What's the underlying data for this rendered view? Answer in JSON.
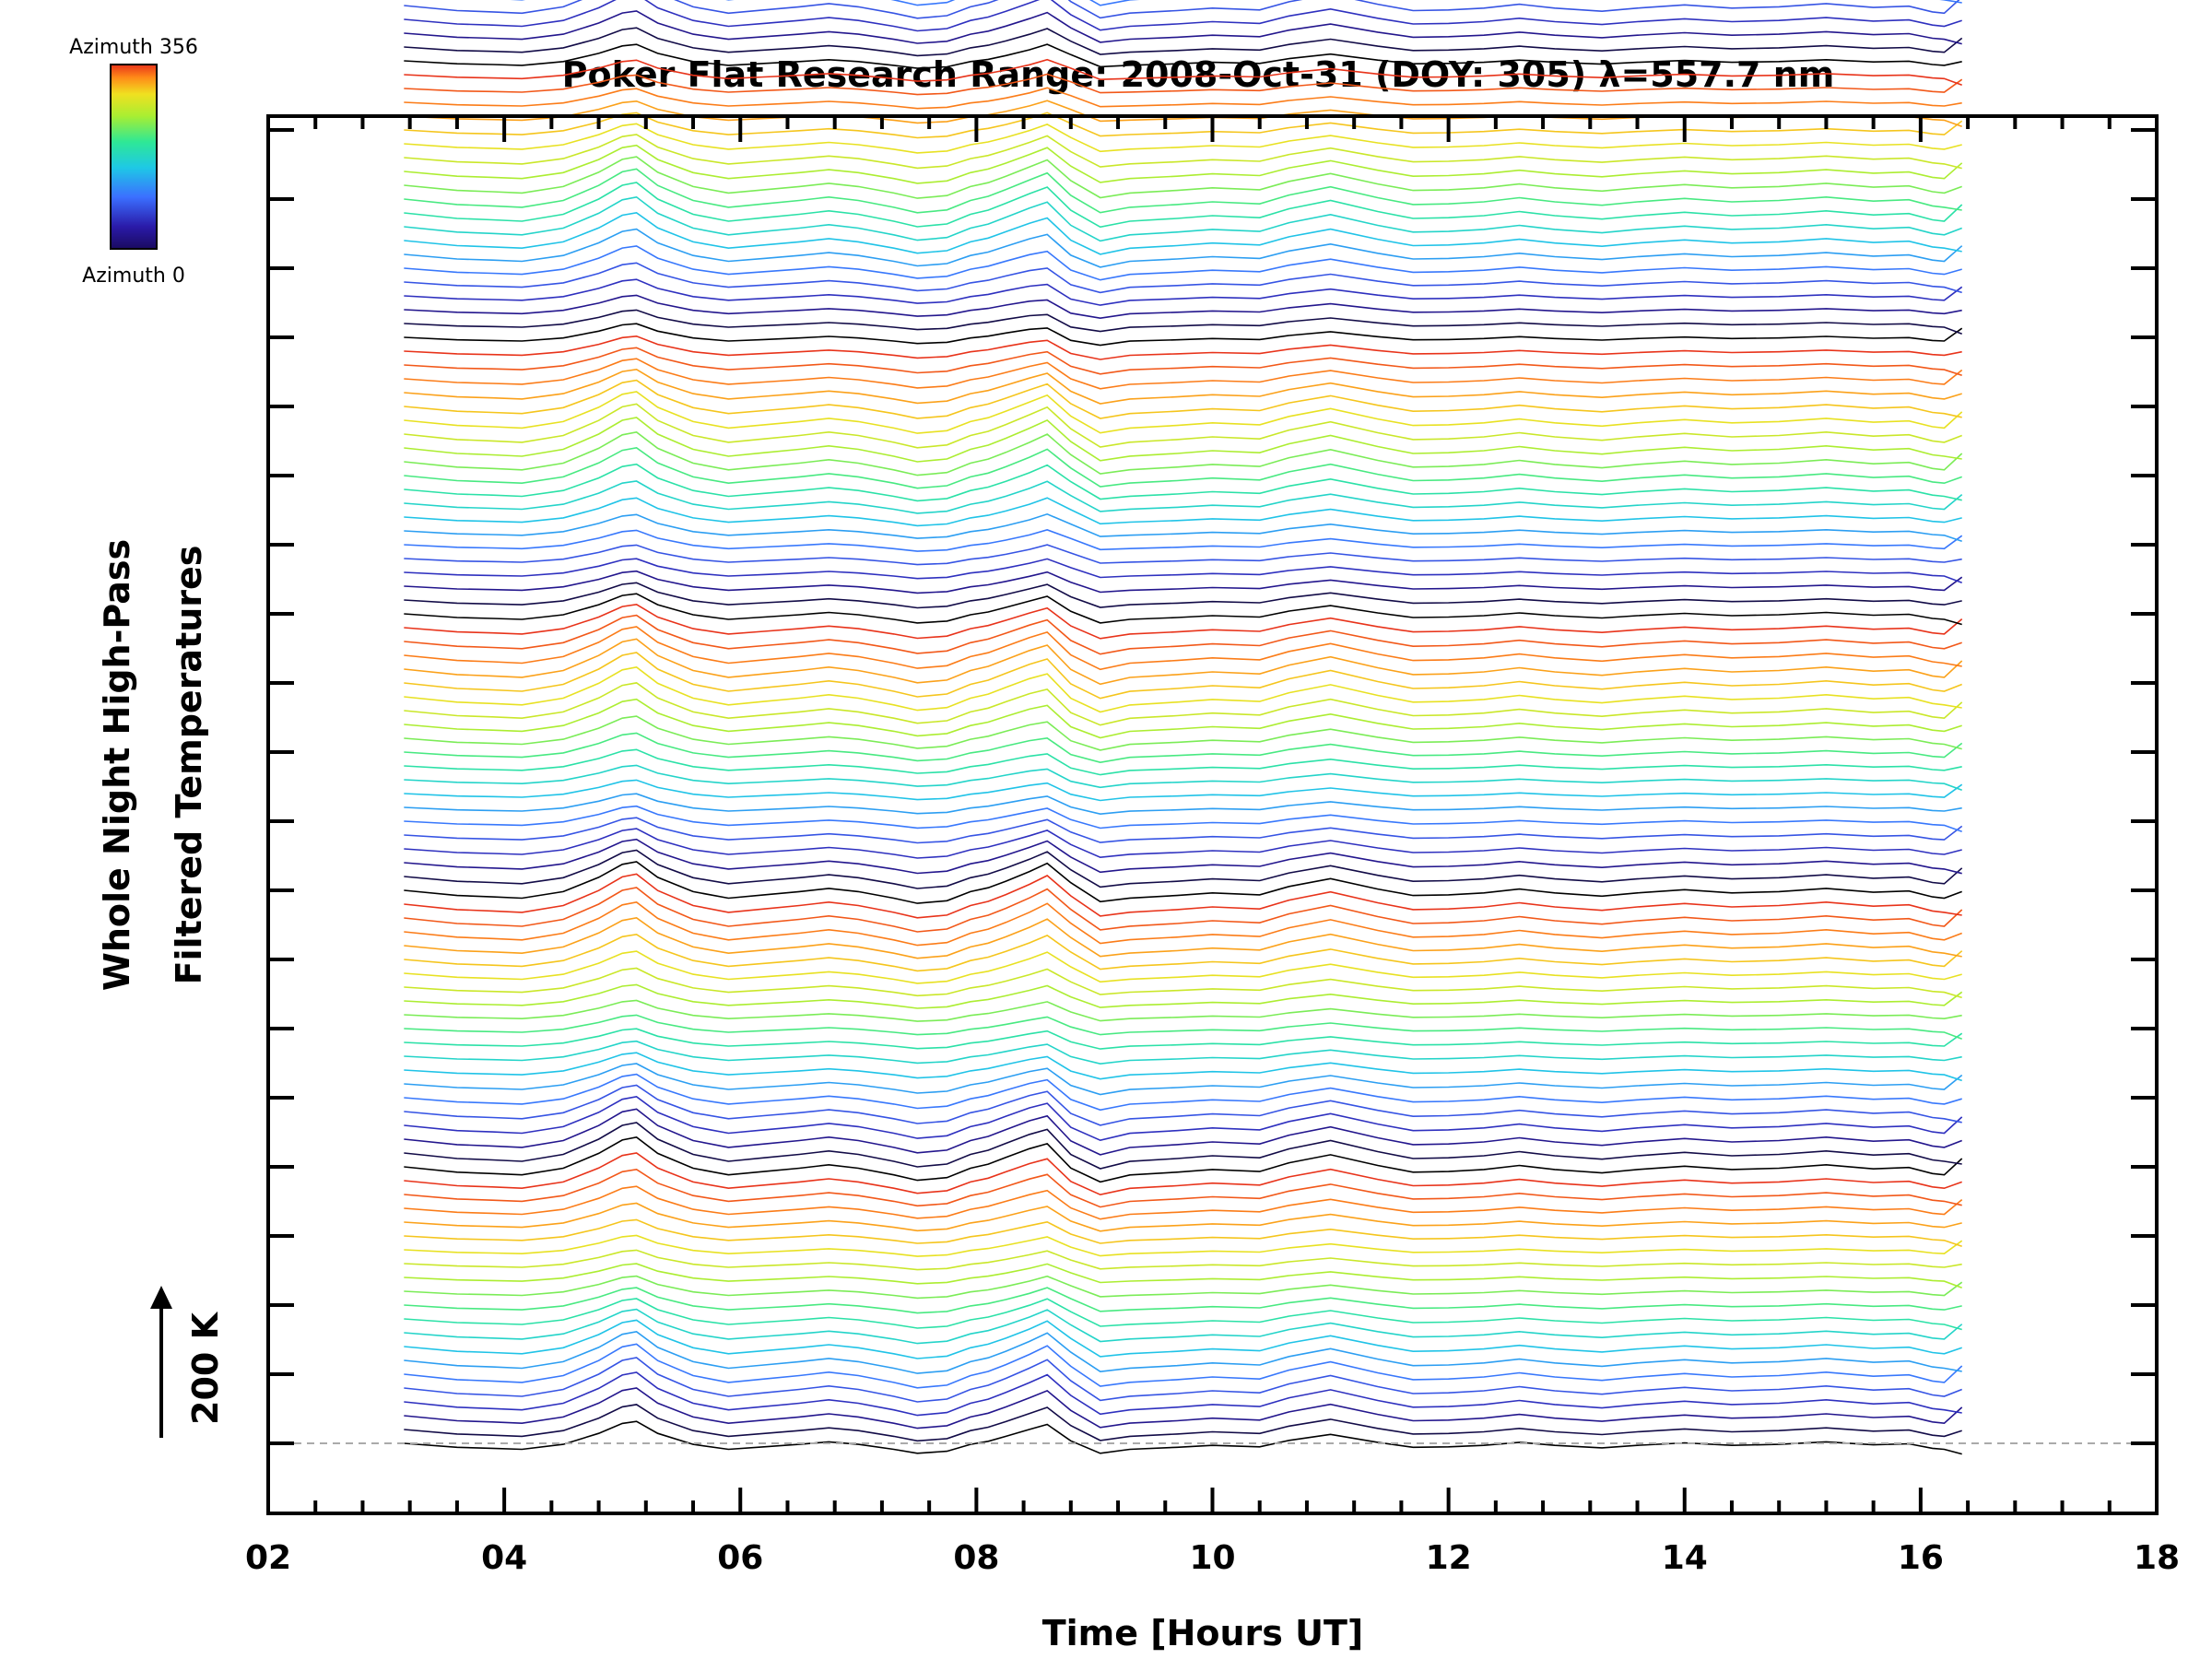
{
  "chart_data": {
    "type": "line",
    "title": "Poker Flat Research Range: 2008-Oct-31 (DOY: 305) λ=557.7 nm",
    "xlabel": "Time [Hours UT]",
    "ylabel": [
      "Whole Night High-Pass",
      "Filtered Temperatures"
    ],
    "xlim": [
      2,
      18
    ],
    "x_ticks": [
      "02",
      "04",
      "06",
      "08",
      "10",
      "12",
      "14",
      "16",
      "18"
    ],
    "scale_bar": {
      "label": "200 K",
      "value_K": 200
    },
    "colorbar": {
      "top_label": "Azimuth 356",
      "bottom_label": "Azimuth 0",
      "range": [
        0,
        356
      ]
    },
    "grid": false,
    "baseline_dashed": true,
    "series_count": 140,
    "stack_spacing_K": 20,
    "colormap": [
      "#000000",
      "#2a1aa8",
      "#3b6fff",
      "#1ec8e6",
      "#2ee896",
      "#a8ee32",
      "#f0e020",
      "#ff8a18",
      "#e8331a"
    ],
    "time_hours": [
      3.15,
      3.6,
      3.9,
      4.15,
      4.5,
      4.8,
      5.0,
      5.12,
      5.3,
      5.6,
      5.9,
      6.2,
      6.5,
      6.75,
      7.0,
      7.3,
      7.5,
      7.75,
      7.95,
      8.1,
      8.25,
      8.45,
      8.6,
      8.8,
      9.05,
      9.3,
      9.7,
      10.0,
      10.4,
      10.65,
      11.0,
      11.4,
      11.7,
      12.0,
      12.3,
      12.6,
      12.9,
      13.3,
      13.6,
      14.0,
      14.4,
      14.8,
      15.2,
      15.6,
      15.9,
      16.1,
      16.2,
      16.35
    ],
    "mean_profile_K": [
      0,
      -8,
      -10,
      -12,
      -2,
      20,
      40,
      44,
      20,
      -2,
      -12,
      -7,
      -2,
      3,
      -2,
      -12,
      -20,
      -16,
      -2,
      4,
      14,
      28,
      38,
      5,
      -20,
      -12,
      -8,
      -4,
      -7,
      6,
      18,
      2,
      -8,
      -7,
      -4,
      2,
      -4,
      -9,
      -4,
      1,
      -4,
      -2,
      3,
      -3,
      -1,
      -10,
      -12,
      -2
    ]
  }
}
